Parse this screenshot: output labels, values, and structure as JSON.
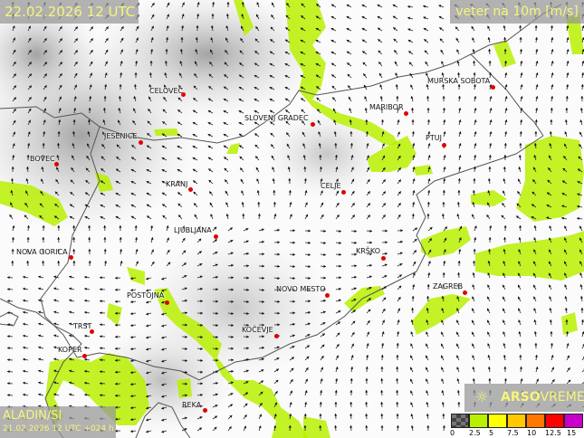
{
  "header": {
    "valid_time": "22.02.2026 12 UTC",
    "variable": "veter na 10m [m/s]"
  },
  "model": {
    "name": "ALADIN/SI",
    "run": "21.02.2026 12 UTC +024 h"
  },
  "brand": {
    "logo_bold": "ARSO",
    "logo_light": "VREME",
    "icon": "sun-icon"
  },
  "legend": {
    "ticks": [
      "0",
      "2.5",
      "5",
      "7.5",
      "10",
      "12.5",
      "15"
    ],
    "colors": [
      "#555555",
      "#b8f000",
      "#ffff00",
      "#ffc800",
      "#ff7800",
      "#ff0000",
      "#c800c8"
    ]
  },
  "colors": {
    "wind_band_2_5_5": "#b8f000",
    "city_dot": "#e00000",
    "label_text": "#f5f57a"
  },
  "cities": [
    {
      "name": "CELOVEC"
    },
    {
      "name": "SLOVENJ GRADEC"
    },
    {
      "name": "MARIBOR"
    },
    {
      "name": "MURSKA SOBOTA"
    },
    {
      "name": "JESENICE"
    },
    {
      "name": "BOVEC"
    },
    {
      "name": "PTUJ"
    },
    {
      "name": "KRANJ"
    },
    {
      "name": "CELJE"
    },
    {
      "name": "LJUBLJANA"
    },
    {
      "name": "NOVA GORICA"
    },
    {
      "name": "KRŠKO"
    },
    {
      "name": "POSTOJNA"
    },
    {
      "name": "NOVO MESTO"
    },
    {
      "name": "ZAGREB"
    },
    {
      "name": "TRST"
    },
    {
      "name": "KOČEVJE"
    },
    {
      "name": "KOPER"
    },
    {
      "name": "REKA"
    }
  ]
}
